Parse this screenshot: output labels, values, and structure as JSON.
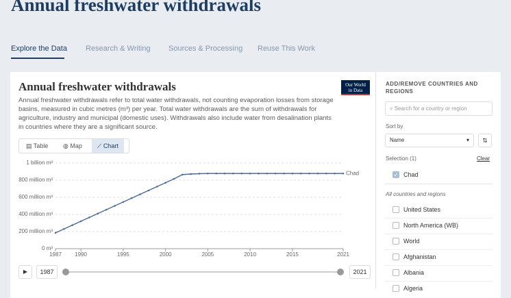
{
  "header": {
    "title": "Annual freshwater withdrawals",
    "tabs": [
      "Explore the Data",
      "Research & Writing",
      "Sources & Processing",
      "Reuse This Work"
    ]
  },
  "logo": [
    "Our World",
    "in Data"
  ],
  "view_tabs": [
    "Table",
    "Map",
    "Chart"
  ],
  "chart_data": {
    "type": "line",
    "title": "Annual freshwater withdrawals",
    "subtitle": "Annual freshwater withdrawals refer to total water withdrawals, not counting evaporation losses from storage basins, measured in cubic metres (m³) per year. Total water withdrawals are the sum of withdrawals for agriculture, industry and municipal (domestic uses). Withdrawals also include water from desalination plants in countries where they are a significant source.",
    "x": [
      1987,
      1988,
      1989,
      1990,
      1991,
      1992,
      1993,
      1994,
      1995,
      1996,
      1997,
      1998,
      1999,
      2000,
      2001,
      2002,
      2003,
      2004,
      2005,
      2006,
      2007,
      2008,
      2009,
      2010,
      2011,
      2012,
      2013,
      2014,
      2015,
      2016,
      2017,
      2018,
      2019,
      2020,
      2021
    ],
    "series": [
      {
        "name": "Chad",
        "color": "#4c6a9c",
        "values": [
          185000000,
          230000000,
          275000000,
          320000000,
          365000000,
          410000000,
          455000000,
          500000000,
          545000000,
          590000000,
          635000000,
          680000000,
          725000000,
          770000000,
          815000000,
          865000000,
          872000000,
          876000000,
          878000000,
          878000000,
          878000000,
          878000000,
          878000000,
          878000000,
          878000000,
          878000000,
          878000000,
          878000000,
          878000000,
          878000000,
          878000000,
          878000000,
          878000000,
          878000000,
          878000000
        ]
      }
    ],
    "xlim": [
      1987,
      2021
    ],
    "xticks": [
      1987,
      1990,
      1995,
      2000,
      2005,
      2010,
      2015,
      2021
    ],
    "ylim": [
      0,
      1000000000
    ],
    "yticks": [
      {
        "value": 0,
        "label": "0 m³"
      },
      {
        "value": 200000000,
        "label": "200 million m³"
      },
      {
        "value": 400000000,
        "label": "400 million m³"
      },
      {
        "value": 600000000,
        "label": "600 million m³"
      },
      {
        "value": 800000000,
        "label": "800 million m³"
      },
      {
        "value": 1000000000,
        "label": "1 billion m³"
      }
    ],
    "grid": true
  },
  "timeline": {
    "start": "1987",
    "end": "2021"
  },
  "sidebar": {
    "title": "ADD/REMOVE COUNTRIES AND REGIONS",
    "search": "Search for a country or region",
    "sort_label": "Sort by",
    "sort_value": "Name",
    "selection": "Selection (1)",
    "clear": "Clear",
    "selected": [
      "Chad"
    ],
    "all_label": "All countries and regions",
    "entities": [
      "United States",
      "North America (WB)",
      "World",
      "Afghanistan",
      "Albania",
      "Algeria"
    ]
  }
}
